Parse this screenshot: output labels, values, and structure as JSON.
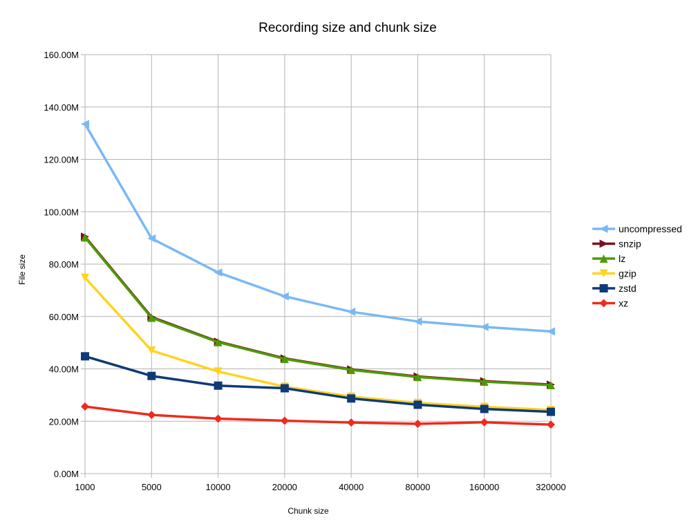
{
  "chart_data": {
    "type": "line",
    "title": "Recording size and chunk size",
    "xlabel": "Chunk size",
    "ylabel": "File size",
    "categories": [
      "1000",
      "5000",
      "10000",
      "20000",
      "40000",
      "80000",
      "160000",
      "320000"
    ],
    "yticks": [
      "0.00M",
      "20.00M",
      "40.00M",
      "60.00M",
      "80.00M",
      "100.00M",
      "120.00M",
      "140.00M",
      "160.00M"
    ],
    "ylim": [
      0,
      160
    ],
    "grid": true,
    "legend_position": "right",
    "series": [
      {
        "name": "uncompressed",
        "color": "#7ab8f5",
        "marker": "triangle-left",
        "values": [
          133.5,
          89.8,
          76.8,
          67.7,
          61.8,
          58.1,
          56.0,
          54.3
        ]
      },
      {
        "name": "snzip",
        "color": "#7b0f1f",
        "marker": "triangle-right",
        "values": [
          90.5,
          59.8,
          50.4,
          44.0,
          39.8,
          37.1,
          35.3,
          34.0
        ]
      },
      {
        "name": "lz",
        "color": "#4e9a06",
        "marker": "triangle-up",
        "values": [
          90.2,
          59.5,
          50.2,
          43.8,
          39.6,
          36.9,
          35.1,
          33.8
        ]
      },
      {
        "name": "gzip",
        "color": "#ffd320",
        "marker": "triangle-down",
        "values": [
          74.8,
          47.0,
          39.0,
          33.2,
          29.4,
          27.0,
          25.5,
          24.3
        ]
      },
      {
        "name": "zstd",
        "color": "#0f3a78",
        "marker": "square",
        "values": [
          44.8,
          37.3,
          33.6,
          32.6,
          28.7,
          26.3,
          24.7,
          23.6
        ]
      },
      {
        "name": "xz",
        "color": "#ee2b1c",
        "marker": "diamond",
        "values": [
          25.6,
          22.4,
          21.0,
          20.2,
          19.5,
          19.0,
          19.6,
          18.7
        ]
      }
    ]
  }
}
